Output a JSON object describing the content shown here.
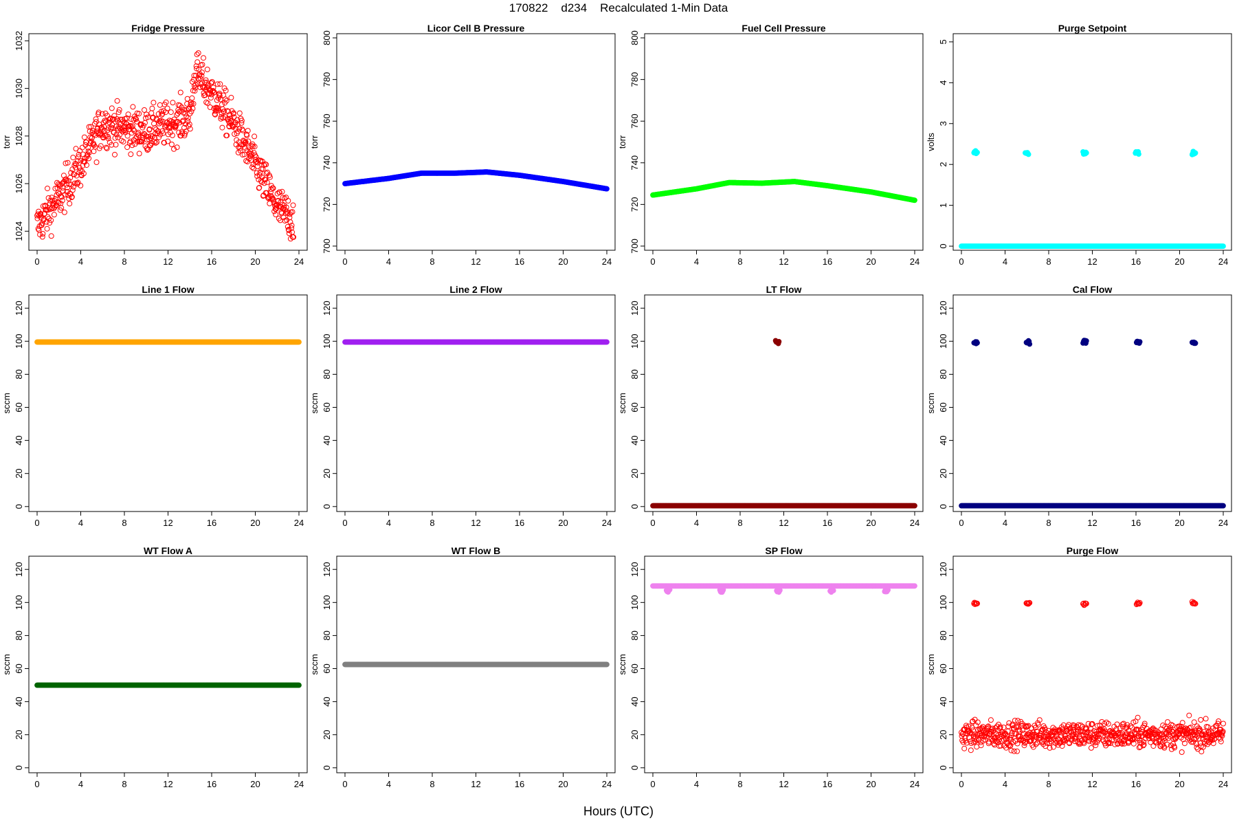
{
  "page": {
    "title": "170822    d234    Recalculated 1-Min Data",
    "xlabel": "Hours (UTC)"
  },
  "chart_data": [
    {
      "type": "scatter",
      "title": "Fridge Pressure",
      "ylabel": "torr",
      "color": "#ff0000",
      "marker": "open-circle",
      "xlim": [
        0,
        24
      ],
      "xticks": [
        0,
        4,
        8,
        12,
        16,
        20,
        24
      ],
      "ylim": [
        1023.2,
        1032.3
      ],
      "yticks": [
        1024,
        1026,
        1028,
        1030,
        1032
      ],
      "series": [
        {
          "kind": "noisy",
          "x": [
            0,
            2,
            4,
            6,
            8,
            10,
            12,
            14,
            14.5,
            16,
            18,
            20,
            22,
            24
          ],
          "y": [
            1024.2,
            1025.4,
            1026.8,
            1028.5,
            1028.3,
            1028.2,
            1028.5,
            1028.8,
            1030.7,
            1029.8,
            1028.5,
            1026.8,
            1025,
            1024.3
          ],
          "noise": 0.45,
          "exclude_points": [
            [
              0,
              18
            ]
          ],
          "last_x": 23.5
        }
      ]
    },
    {
      "type": "scatter",
      "title": "Licor Cell B Pressure",
      "ylabel": "torr",
      "color": "#0000ff",
      "marker": "filled-circle",
      "xlim": [
        0,
        24
      ],
      "xticks": [
        0,
        4,
        8,
        12,
        16,
        20,
        24
      ],
      "ylim": [
        698,
        802
      ],
      "yticks": [
        700,
        720,
        740,
        760,
        780,
        800
      ],
      "series": [
        {
          "kind": "line",
          "x": [
            0,
            4,
            7,
            10,
            13,
            16,
            20,
            24
          ],
          "y": [
            730,
            732.5,
            735,
            735,
            735.6,
            734,
            731,
            727.5
          ]
        }
      ]
    },
    {
      "type": "scatter",
      "title": "Fuel Cell Pressure",
      "ylabel": "torr",
      "color": "#00ff00",
      "marker": "filled-circle",
      "xlim": [
        0,
        24
      ],
      "xticks": [
        0,
        4,
        8,
        12,
        16,
        20,
        24
      ],
      "ylim": [
        698,
        802
      ],
      "yticks": [
        700,
        720,
        740,
        760,
        780,
        800
      ],
      "series": [
        {
          "kind": "line",
          "x": [
            0,
            4,
            7,
            10,
            13,
            16,
            20,
            24
          ],
          "y": [
            724.5,
            727.5,
            730.5,
            730.2,
            731,
            729,
            726,
            722
          ]
        }
      ]
    },
    {
      "type": "scatter",
      "title": "Purge Setpoint",
      "ylabel": "volts",
      "color": "#00ffff",
      "marker": "filled-circle",
      "xlim": [
        0,
        24
      ],
      "xticks": [
        0,
        4,
        8,
        12,
        16,
        20,
        24
      ],
      "ylim": [
        -0.1,
        5.2
      ],
      "yticks": [
        0,
        1,
        2,
        3,
        4,
        5
      ],
      "series": [
        {
          "kind": "line",
          "x": [
            0,
            24
          ],
          "y": [
            0,
            0
          ]
        },
        {
          "kind": "clusters",
          "x": [
            1.3,
            6.0,
            11.3,
            16.1,
            21.3
          ],
          "y": 2.28
        }
      ]
    },
    {
      "type": "scatter",
      "title": "Line 1 Flow",
      "ylabel": "sccm",
      "color": "#ffa500",
      "marker": "filled-circle",
      "xlim": [
        0,
        24
      ],
      "xticks": [
        0,
        4,
        8,
        12,
        16,
        20,
        24
      ],
      "ylim": [
        -3,
        128
      ],
      "yticks": [
        0,
        20,
        40,
        60,
        80,
        100,
        120
      ],
      "series": [
        {
          "kind": "line",
          "x": [
            0,
            24
          ],
          "y": [
            99.5,
            99.5
          ]
        }
      ]
    },
    {
      "type": "scatter",
      "title": "Line 2 Flow",
      "ylabel": "sccm",
      "color": "#a020f0",
      "marker": "filled-circle",
      "xlim": [
        0,
        24
      ],
      "xticks": [
        0,
        4,
        8,
        12,
        16,
        20,
        24
      ],
      "ylim": [
        -3,
        128
      ],
      "yticks": [
        0,
        20,
        40,
        60,
        80,
        100,
        120
      ],
      "series": [
        {
          "kind": "line",
          "x": [
            0,
            24
          ],
          "y": [
            99.5,
            99.5
          ]
        }
      ]
    },
    {
      "type": "scatter",
      "title": "LT Flow",
      "ylabel": "sccm",
      "color": "#8b0000",
      "marker": "filled-circle",
      "xlim": [
        0,
        24
      ],
      "xticks": [
        0,
        4,
        8,
        12,
        16,
        20,
        24
      ],
      "ylim": [
        -3,
        128
      ],
      "yticks": [
        0,
        20,
        40,
        60,
        80,
        100,
        120
      ],
      "series": [
        {
          "kind": "line",
          "x": [
            0,
            24
          ],
          "y": [
            0.5,
            0.5
          ]
        },
        {
          "kind": "clusters",
          "x": [
            11.4
          ],
          "y": 99.5
        }
      ]
    },
    {
      "type": "scatter",
      "title": "Cal Flow",
      "ylabel": "sccm",
      "color": "#000080",
      "marker": "filled-circle",
      "xlim": [
        0,
        24
      ],
      "xticks": [
        0,
        4,
        8,
        12,
        16,
        20,
        24
      ],
      "ylim": [
        -3,
        128
      ],
      "yticks": [
        0,
        20,
        40,
        60,
        80,
        100,
        120
      ],
      "series": [
        {
          "kind": "line",
          "x": [
            0,
            24
          ],
          "y": [
            0.5,
            0.5
          ]
        },
        {
          "kind": "clusters",
          "x": [
            1.3,
            6.1,
            11.3,
            16.2,
            21.3
          ],
          "y": 99.5
        }
      ]
    },
    {
      "type": "scatter",
      "title": "WT Flow A",
      "ylabel": "sccm",
      "color": "#006400",
      "marker": "filled-circle",
      "xlim": [
        0,
        24
      ],
      "xticks": [
        0,
        4,
        8,
        12,
        16,
        20,
        24
      ],
      "ylim": [
        -3,
        128
      ],
      "yticks": [
        0,
        20,
        40,
        60,
        80,
        100,
        120
      ],
      "series": [
        {
          "kind": "line",
          "x": [
            0,
            24
          ],
          "y": [
            50,
            50
          ]
        }
      ]
    },
    {
      "type": "scatter",
      "title": "WT Flow B",
      "ylabel": "sccm",
      "color": "#808080",
      "marker": "filled-circle",
      "xlim": [
        0,
        24
      ],
      "xticks": [
        0,
        4,
        8,
        12,
        16,
        20,
        24
      ],
      "ylim": [
        -3,
        128
      ],
      "yticks": [
        0,
        20,
        40,
        60,
        80,
        100,
        120
      ],
      "series": [
        {
          "kind": "line",
          "x": [
            0,
            24
          ],
          "y": [
            62.5,
            62.5
          ]
        }
      ]
    },
    {
      "type": "scatter",
      "title": "SP Flow",
      "ylabel": "sccm",
      "color": "#ee82ee",
      "marker": "filled-circle",
      "xlim": [
        0,
        24
      ],
      "xticks": [
        0,
        4,
        8,
        12,
        16,
        20,
        24
      ],
      "ylim": [
        -3,
        128
      ],
      "yticks": [
        0,
        20,
        40,
        60,
        80,
        100,
        120
      ],
      "series": [
        {
          "kind": "line",
          "x": [
            0,
            24
          ],
          "y": [
            110,
            110
          ]
        },
        {
          "kind": "clusters",
          "x": [
            1.4,
            6.3,
            11.5,
            16.4,
            21.4
          ],
          "y": 107
        }
      ]
    },
    {
      "type": "scatter",
      "title": "Purge Flow",
      "ylabel": "sccm",
      "color": "#ff0000",
      "marker": "open-circle",
      "xlim": [
        0,
        24
      ],
      "xticks": [
        0,
        4,
        8,
        12,
        16,
        20,
        24
      ],
      "ylim": [
        -3,
        128
      ],
      "yticks": [
        0,
        20,
        40,
        60,
        80,
        100,
        120
      ],
      "series": [
        {
          "kind": "noisy",
          "x": [
            0,
            24
          ],
          "y": [
            20,
            20
          ],
          "noise": 4
        },
        {
          "kind": "clusters",
          "x": [
            1.3,
            6.1,
            11.3,
            16.2,
            21.3
          ],
          "y": 99.5
        }
      ]
    }
  ]
}
